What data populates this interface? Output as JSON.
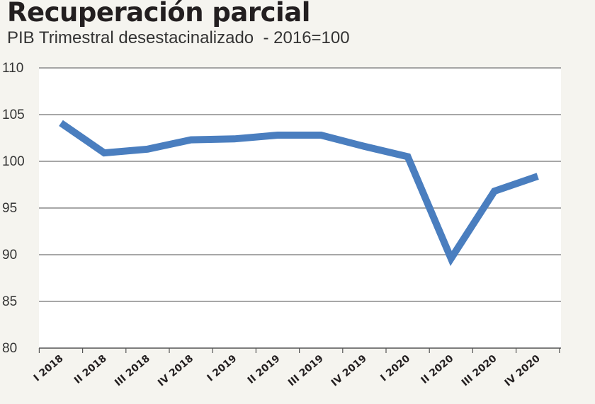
{
  "chart_data": {
    "type": "line",
    "title": "Recuperación parcial",
    "subtitle": "PIB Trimestral desestacinalizado  - 2016=100",
    "categories": [
      "I 2018",
      "II 2018",
      "III 2018",
      "IV 2018",
      "I 2019",
      "II 2019",
      "III 2019",
      "IV 2019",
      "I 2020",
      "II 2020",
      "III 2020",
      "IV 2020"
    ],
    "series": [
      {
        "values": [
          104.1,
          100.9,
          101.3,
          102.3,
          102.4,
          102.8,
          102.8,
          101.6,
          100.5,
          89.6,
          96.8,
          98.4
        ],
        "color": "#4a7ebf"
      }
    ],
    "ylim": [
      80,
      110
    ],
    "yticks": [
      80,
      85,
      90,
      95,
      100,
      105,
      110
    ],
    "grid": true,
    "xlabel": "",
    "ylabel": ""
  }
}
